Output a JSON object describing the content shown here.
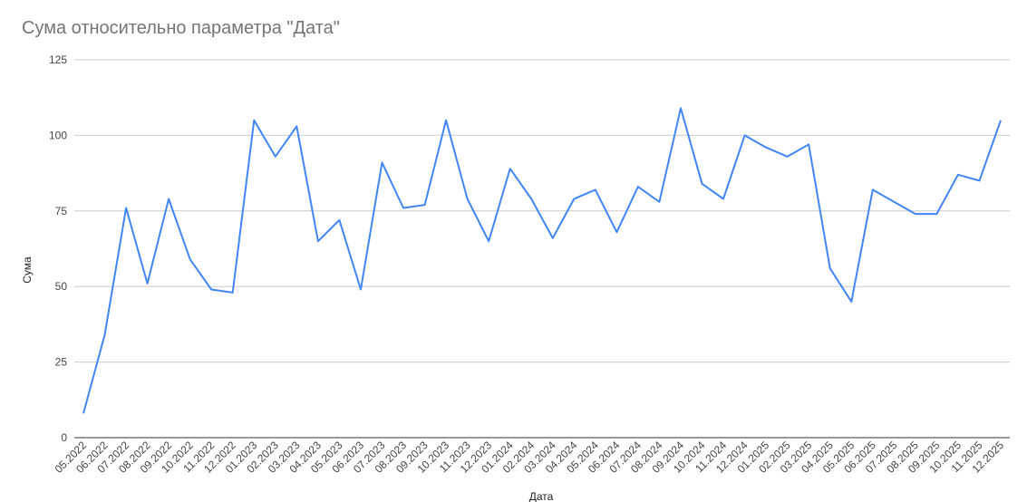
{
  "chart_data": {
    "type": "line",
    "title": "Сума относительно параметра \"Дата\"",
    "xlabel": "Дата",
    "ylabel": "Сума",
    "ylim": [
      0,
      125
    ],
    "yticks": [
      0,
      25,
      50,
      75,
      100,
      125
    ],
    "grid": true,
    "legend": "none",
    "line_color": "#4285f4",
    "grid_color": "#cccccc",
    "x": [
      "05.2022",
      "06.2022",
      "07.2022",
      "08.2022",
      "09.2022",
      "10.2022",
      "11.2022",
      "12.2022",
      "01.2023",
      "02.2023",
      "03.2023",
      "04.2023",
      "05.2023",
      "06.2023",
      "07.2023",
      "08.2023",
      "09.2023",
      "10.2023",
      "11.2023",
      "12.2023",
      "01.2024",
      "02.2024",
      "03.2024",
      "04.2024",
      "05.2024",
      "06.2024",
      "07.2024",
      "08.2024",
      "09.2024",
      "10.2024",
      "11.2024",
      "12.2024",
      "01.2025",
      "02.2025",
      "03.2025",
      "04.2025",
      "05.2025",
      "06.2025",
      "07.2025",
      "08.2025",
      "09.2025",
      "10.2025",
      "11.2025",
      "12.2025"
    ],
    "series": [
      {
        "values": [
          8,
          34,
          76,
          51,
          79,
          59,
          49,
          48,
          105,
          93,
          103,
          65,
          72,
          49,
          91,
          76,
          77,
          105,
          79,
          65,
          89,
          79,
          66,
          79,
          82,
          68,
          83,
          78,
          109,
          84,
          79,
          100,
          96,
          93,
          97,
          56,
          45,
          82,
          78,
          74,
          74,
          87,
          85,
          105
        ]
      }
    ]
  }
}
